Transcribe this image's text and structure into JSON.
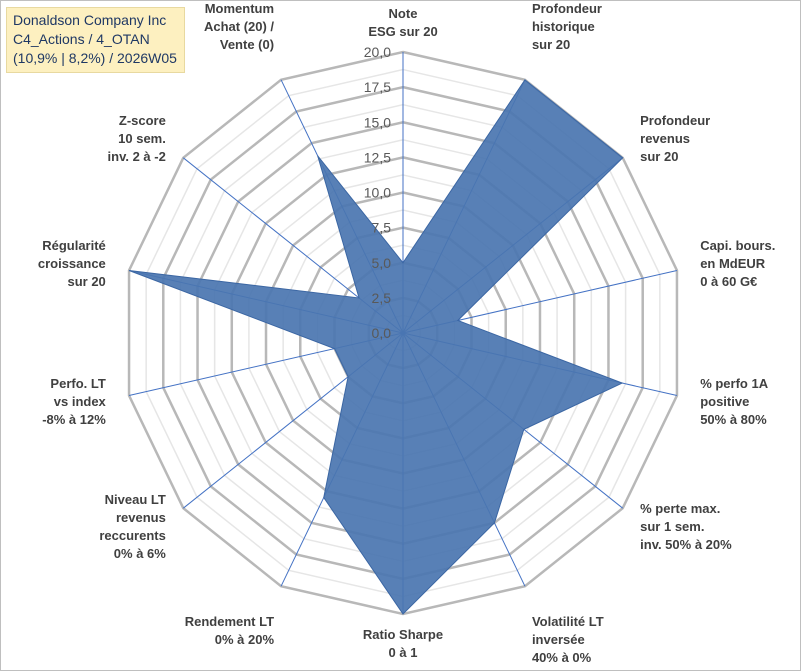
{
  "chart_data": {
    "type": "radar",
    "title_lines": [
      "Donaldson Company Inc",
      "C4_Actions / 4_OTAN",
      "(10,9% | 8,2%) / 2026W05"
    ],
    "rmin": 0,
    "rmax": 20,
    "ticks": [
      "0,0",
      "2,5",
      "5,0",
      "7,5",
      "10,0",
      "12,5",
      "15,0",
      "17,5",
      "20,0"
    ],
    "axes": [
      {
        "label": [
          "Note",
          "ESG sur 20"
        ],
        "value": 5
      },
      {
        "label": [
          "Profondeur",
          "historique",
          "sur 20"
        ],
        "value": 20
      },
      {
        "label": [
          "Profondeur",
          "revenus",
          "sur 20"
        ],
        "value": 20
      },
      {
        "label": [
          "Capi. bours.",
          "en MdEUR",
          "0 à 60 G€"
        ],
        "value": 4
      },
      {
        "label": [
          "% perfo 1A",
          "positive",
          "50% à 80%"
        ],
        "value": 16
      },
      {
        "label": [
          "% perte max.",
          "sur 1 sem.",
          "inv. 50% à 20%"
        ],
        "value": 11
      },
      {
        "label": [
          "Volatilité LT",
          "inversée",
          "40% à 0%"
        ],
        "value": 15
      },
      {
        "label": [
          "Ratio Sharpe",
          "0 à 1"
        ],
        "value": 20
      },
      {
        "label": [
          "Rendement LT",
          "0% à 20%"
        ],
        "value": 13
      },
      {
        "label": [
          "Niveau LT",
          "revenus",
          "reccurents",
          "0% à 6%"
        ],
        "value": 5
      },
      {
        "label": [
          "Perfo. LT",
          "vs index",
          "-8% à 12%"
        ],
        "value": 5
      },
      {
        "label": [
          "Régularité",
          "croissance",
          "sur 20"
        ],
        "value": 20
      },
      {
        "label": [
          "Z-score",
          "10 sem.",
          "inv. 2 à -2"
        ],
        "value": 4
      },
      {
        "label": [
          "Momentum",
          "Achat (20) /",
          "Vente (0)"
        ],
        "value": 14
      }
    ],
    "colors": {
      "fill": "#4a75b0",
      "stroke": "#3b66a3",
      "grid_major": "#b8b8b8",
      "grid_minor": "#e6e6e6",
      "spoke": "#4472c4"
    }
  }
}
